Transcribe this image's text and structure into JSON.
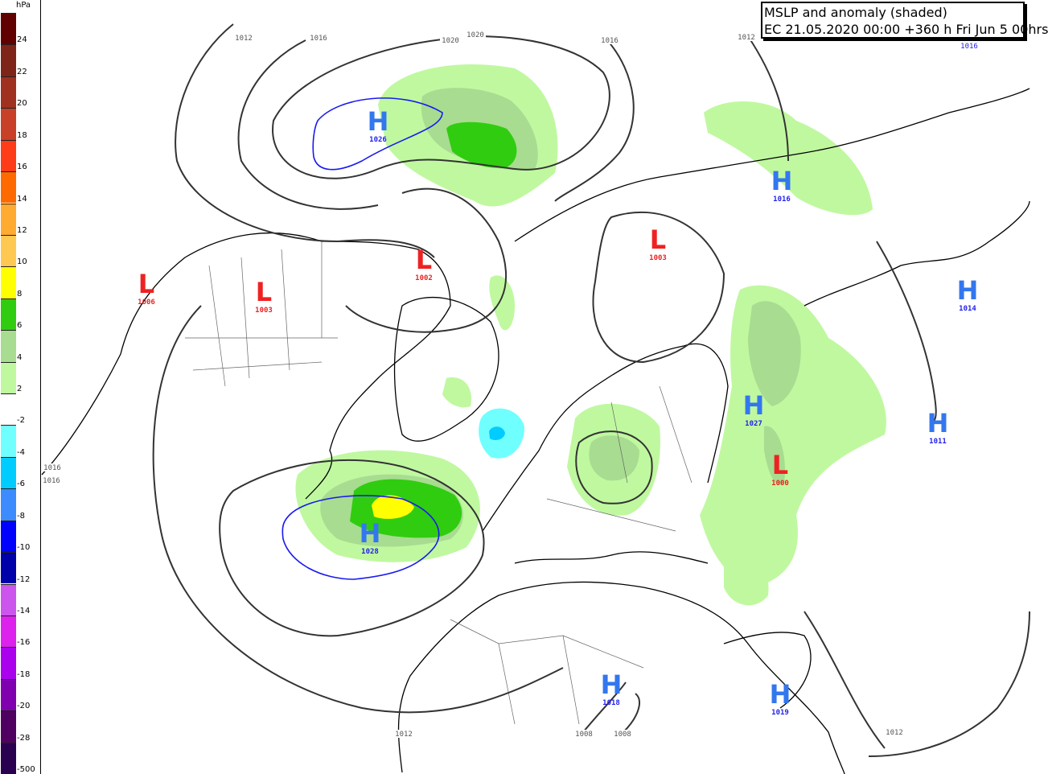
{
  "title": {
    "line1": "MSLP and anomaly (shaded)",
    "line2": "EC 21.05.2020 00:00 +360 h Fri Jun 5 00hrs"
  },
  "legend": {
    "unit": "hPa",
    "bins": [
      {
        "label": "24",
        "color": "#600000"
      },
      {
        "label": "22",
        "color": "#7f2418"
      },
      {
        "label": "20",
        "color": "#a03020"
      },
      {
        "label": "18",
        "color": "#c84028"
      },
      {
        "label": "16",
        "color": "#ff3c18"
      },
      {
        "label": "14",
        "color": "#ff6a00"
      },
      {
        "label": "12",
        "color": "#ffaa30"
      },
      {
        "label": "10",
        "color": "#ffc850"
      },
      {
        "label": "8",
        "color": "#ffff00"
      },
      {
        "label": "6",
        "color": "#30cc10"
      },
      {
        "label": "4",
        "color": "#a8dc90"
      },
      {
        "label": "2",
        "color": "#c0f8a0"
      },
      {
        "label": "-2",
        "color": "#ffffff"
      },
      {
        "label": "-4",
        "color": "#70ffff"
      },
      {
        "label": "-6",
        "color": "#00ccff"
      },
      {
        "label": "-8",
        "color": "#3c8cff"
      },
      {
        "label": "-10",
        "color": "#0000ff"
      },
      {
        "label": "-12",
        "color": "#0000aa"
      },
      {
        "label": "-14",
        "color": "#cc55ee"
      },
      {
        "label": "-16",
        "color": "#dd22ee"
      },
      {
        "label": "-18",
        "color": "#aa00ee"
      },
      {
        "label": "-20",
        "color": "#8000b0"
      },
      {
        "label": "-28",
        "color": "#500060"
      },
      {
        "label": "-500",
        "color": "#2a0050"
      }
    ]
  },
  "colors": {
    "high": "#3377ee",
    "high_value": "#2222ee",
    "low": "#ee2222",
    "low_value": "#ee2222",
    "isobar": "#333333",
    "coast": "#000000"
  },
  "pressure_centers": [
    {
      "type": "H",
      "value": "1026"
    },
    {
      "type": "H",
      "value": "1028"
    },
    {
      "type": "L",
      "value": "1006"
    },
    {
      "type": "L",
      "value": "1003"
    },
    {
      "type": "L",
      "value": "1002"
    },
    {
      "type": "L",
      "value": "1003"
    },
    {
      "type": "H",
      "value": "1016"
    },
    {
      "type": "H",
      "value": "1014"
    },
    {
      "type": "H",
      "value": "1027"
    },
    {
      "type": "H",
      "value": "1011"
    },
    {
      "type": "L",
      "value": "1000"
    },
    {
      "type": "H",
      "value": "1018"
    },
    {
      "type": "H",
      "value": "1019"
    }
  ],
  "isobar_labels": [
    "1012",
    "1016",
    "1020",
    "1020",
    "1016",
    "1012",
    "1016",
    "1016",
    "1016",
    "1012",
    "1008",
    "1008",
    "1012"
  ]
}
